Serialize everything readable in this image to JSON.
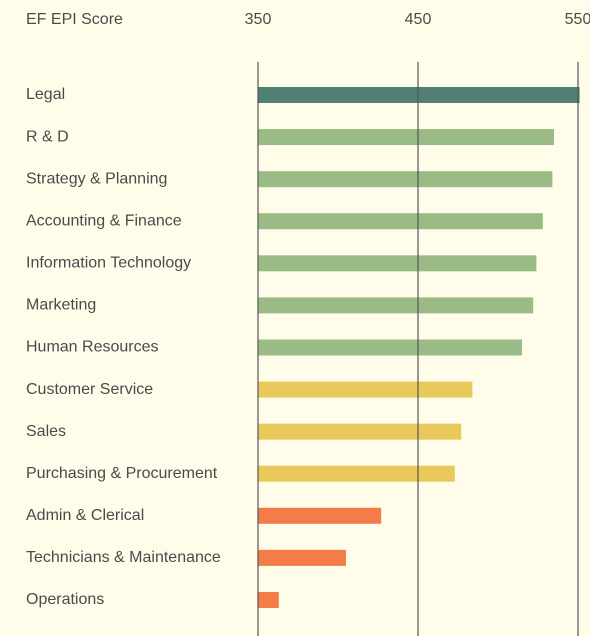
{
  "chart_data": {
    "type": "bar",
    "orientation": "horizontal",
    "x_label": "EF EPI Score",
    "categories": [
      "Legal",
      "R & D",
      "Strategy & Planning",
      "Accounting & Finance",
      "Information Technology",
      "Marketing",
      "Human Resources",
      "Customer Service",
      "Sales",
      "Purchasing & Procurement",
      "Admin & Clerical",
      "Technicians & Maintenance",
      "Operations"
    ],
    "values": [
      551,
      535,
      534,
      528,
      524,
      522,
      515,
      484,
      477,
      473,
      427,
      405,
      363
    ],
    "colors": [
      "#527f74",
      "#9bbb86",
      "#9bbb86",
      "#9bbb86",
      "#9bbb86",
      "#9bbb86",
      "#9bbb86",
      "#e8c95a",
      "#e8c95a",
      "#e8c95a",
      "#f47c48",
      "#f47c48",
      "#f47c48"
    ],
    "xlim": [
      350,
      550
    ],
    "xticks": [
      350,
      450,
      550
    ],
    "grid": true
  }
}
